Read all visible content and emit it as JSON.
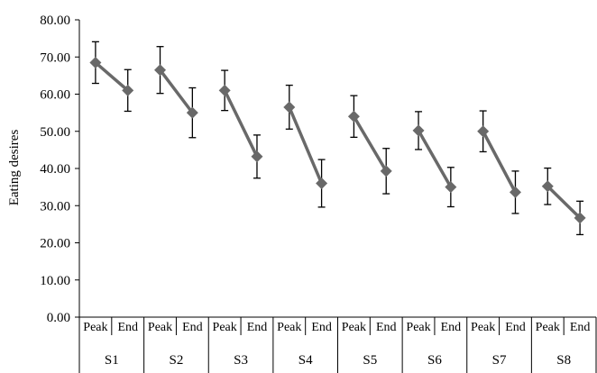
{
  "chart_data": {
    "type": "line",
    "ylabel": "Eating desires",
    "ylim": [
      0,
      80
    ],
    "yticks": [
      0,
      10,
      20,
      30,
      40,
      50,
      60,
      70,
      80
    ],
    "ytick_labels": [
      "0.00",
      "10.00",
      "20.00",
      "30.00",
      "40.00",
      "50.00",
      "60.00",
      "70.00",
      "80.00"
    ],
    "grid": false,
    "legend": "none",
    "groups": [
      "S1",
      "S2",
      "S3",
      "S4",
      "S5",
      "S6",
      "S7",
      "S8"
    ],
    "subcategories": [
      "Peak",
      "End"
    ],
    "series": [
      {
        "values": [
          {
            "group": "S1",
            "peak": 68.5,
            "peak_err": 5.6,
            "end": 61.0,
            "end_err": 5.6
          },
          {
            "group": "S2",
            "peak": 66.5,
            "peak_err": 6.3,
            "end": 55.0,
            "end_err": 6.7
          },
          {
            "group": "S3",
            "peak": 61.0,
            "peak_err": 5.4,
            "end": 43.2,
            "end_err": 5.8
          },
          {
            "group": "S4",
            "peak": 56.5,
            "peak_err": 5.9,
            "end": 36.0,
            "end_err": 6.4
          },
          {
            "group": "S5",
            "peak": 54.0,
            "peak_err": 5.6,
            "end": 39.3,
            "end_err": 6.1
          },
          {
            "group": "S6",
            "peak": 50.2,
            "peak_err": 5.1,
            "end": 35.0,
            "end_err": 5.3
          },
          {
            "group": "S7",
            "peak": 50.0,
            "peak_err": 5.5,
            "end": 33.6,
            "end_err": 5.7
          },
          {
            "group": "S8",
            "peak": 35.2,
            "peak_err": 4.9,
            "end": 26.7,
            "end_err": 4.5
          }
        ]
      }
    ],
    "colors": {
      "line": "#696969",
      "marker": "#696969",
      "error_bar": "#000000",
      "axis": "#000000"
    }
  }
}
